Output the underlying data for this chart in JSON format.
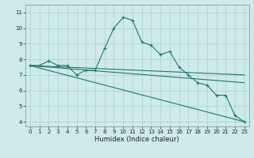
{
  "xlabel": "Humidex (Indice chaleur)",
  "ylabel": "",
  "background_color": "#ceeaea",
  "grid_color": "#aed4d4",
  "line_color": "#1a7a6a",
  "xlim": [
    -0.5,
    23.5
  ],
  "ylim": [
    3.7,
    11.5
  ],
  "yticks": [
    4,
    5,
    6,
    7,
    8,
    9,
    10,
    11
  ],
  "xticks": [
    0,
    1,
    2,
    3,
    4,
    5,
    6,
    7,
    8,
    9,
    10,
    11,
    12,
    13,
    14,
    15,
    16,
    17,
    18,
    19,
    20,
    21,
    22,
    23
  ],
  "series": [
    {
      "x": [
        0,
        1,
        2,
        3,
        4,
        5,
        6,
        7,
        8,
        9,
        10,
        11,
        12,
        13,
        14,
        15,
        16,
        17,
        18,
        19,
        20,
        21,
        22,
        23
      ],
      "y": [
        7.6,
        7.6,
        7.9,
        7.6,
        7.6,
        7.0,
        7.3,
        7.3,
        8.7,
        10.0,
        10.7,
        10.5,
        9.1,
        8.9,
        8.3,
        8.5,
        7.5,
        7.0,
        6.5,
        6.35,
        5.7,
        5.7,
        4.4,
        4.0
      ],
      "marker": true
    },
    {
      "x": [
        0,
        23
      ],
      "y": [
        7.6,
        6.5
      ],
      "marker": false
    },
    {
      "x": [
        0,
        23
      ],
      "y": [
        7.6,
        4.0
      ],
      "marker": false
    },
    {
      "x": [
        0,
        23
      ],
      "y": [
        7.6,
        7.0
      ],
      "marker": false
    }
  ],
  "tick_labelsize": 5.0,
  "xlabel_fontsize": 6.0
}
